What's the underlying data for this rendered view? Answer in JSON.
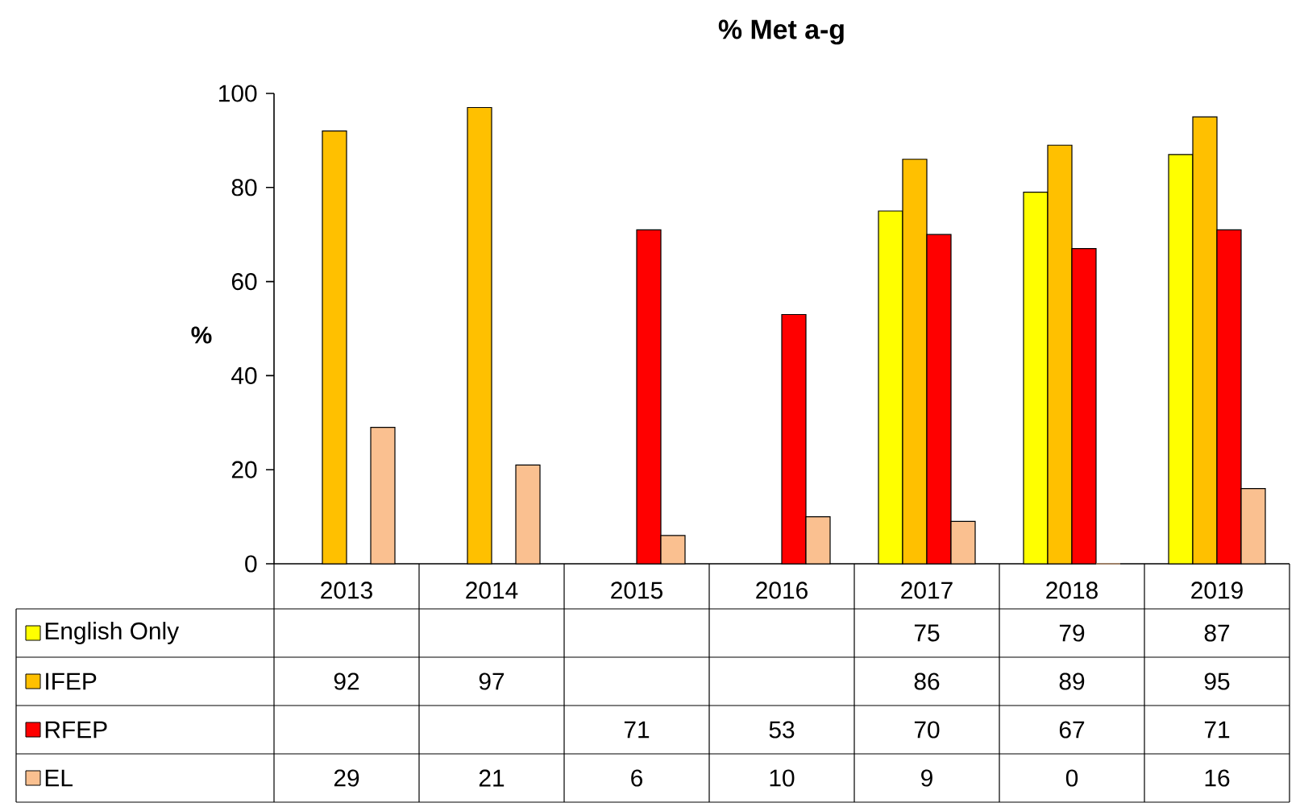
{
  "chart_data": {
    "type": "bar",
    "title": "% Met a-g",
    "ylabel": "%",
    "categories": [
      "2013",
      "2014",
      "2015",
      "2016",
      "2017",
      "2018",
      "2019"
    ],
    "series": [
      {
        "name": "English Only",
        "color": "#ffff00",
        "values": [
          null,
          null,
          null,
          null,
          75,
          79,
          87
        ]
      },
      {
        "name": "IFEP",
        "color": "#ffc000",
        "values": [
          92,
          97,
          null,
          null,
          86,
          89,
          95
        ]
      },
      {
        "name": "RFEP",
        "color": "#ff0000",
        "values": [
          null,
          null,
          71,
          53,
          70,
          67,
          71
        ]
      },
      {
        "name": "EL",
        "color": "#fac090",
        "values": [
          29,
          21,
          6,
          10,
          9,
          0,
          16
        ]
      }
    ],
    "ylim": [
      0,
      100
    ],
    "yticks": [
      0,
      20,
      40,
      60,
      80,
      100
    ],
    "grid": false,
    "legend": "bottom",
    "data_labels": true
  }
}
